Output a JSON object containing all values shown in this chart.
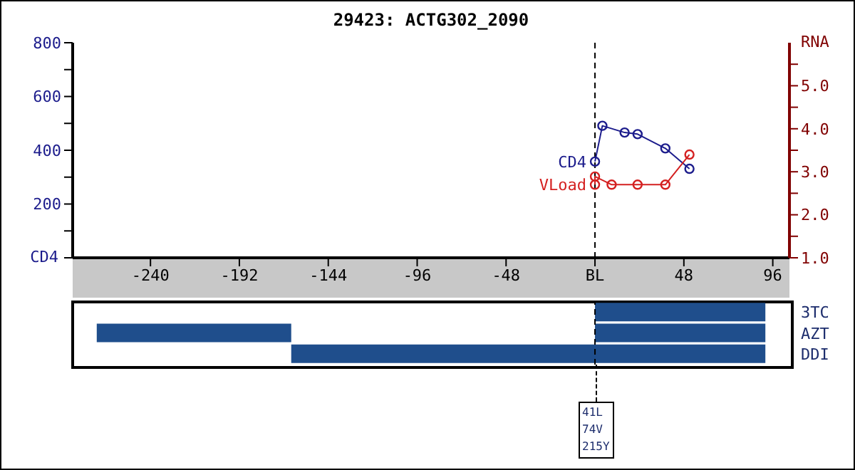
{
  "chart_data": [
    {
      "type": "line",
      "title": "29423: ACTG302_2090",
      "ylabel": "CD4",
      "y2label": "RNA",
      "marker": "circle",
      "series": [
        {
          "name": "CD4",
          "color": "#1c1c8c",
          "x": [
            0,
            4,
            16,
            23,
            38,
            51
          ],
          "values": [
            358,
            491,
            466,
            460,
            407,
            331
          ]
        },
        {
          "name": "VLoad",
          "color": "#d42020",
          "axis": "y2",
          "x": [
            0,
            0,
            9,
            23,
            38,
            51
          ],
          "values": [
            2.7,
            2.89,
            2.7,
            2.7,
            2.7,
            3.4
          ]
        }
      ],
      "xlim": [
        -282,
        105
      ],
      "xticks": [
        -240,
        -192,
        -144,
        -96,
        -48,
        {
          "value": 0,
          "label": "BL"
        },
        48,
        96
      ],
      "ylim": [
        0,
        800
      ],
      "yticks": [
        {
          "value": 0,
          "label": null
        },
        {
          "value": 100,
          "label": null
        },
        200,
        {
          "value": 300,
          "label": null
        },
        400,
        {
          "value": 500,
          "label": null
        },
        600,
        {
          "value": 700,
          "label": null
        },
        800
      ],
      "y2lim": [
        1,
        6
      ],
      "y2ticks": [
        {
          "value": 1,
          "label": "1.0"
        },
        {
          "value": 1.5,
          "label": null
        },
        {
          "value": 2,
          "label": "2.0"
        },
        {
          "value": 2.5,
          "label": null
        },
        {
          "value": 3,
          "label": "3.0"
        },
        {
          "value": 3.5,
          "label": null
        },
        {
          "value": 4,
          "label": "4.0"
        },
        {
          "value": 4.5,
          "label": null
        },
        {
          "value": 5,
          "label": "5.0"
        },
        {
          "value": 5.5,
          "label": null
        }
      ],
      "ref_lines": [
        {
          "axis": "x",
          "value": 0,
          "line_style": "dashed",
          "color": "#000000"
        }
      ]
    },
    {
      "type": "bar",
      "orientation": "horizontal",
      "categories": [
        "3TC",
        "AZT",
        "DDI"
      ],
      "tick_labels": "y",
      "series": [
        {
          "color": "#1f4e8c",
          "base": [
            0,
            -269,
            -164
          ],
          "values": [
            92,
            105,
            256
          ]
        },
        {
          "color": "#1f4e8c",
          "base": [
            null,
            0,
            null
          ],
          "values": [
            null,
            92,
            null
          ]
        }
      ],
      "xlim": [
        -282,
        105
      ],
      "ref_lines": [
        {
          "axis": "x",
          "value": 0,
          "line_style": "dashed",
          "color": "#000000"
        }
      ],
      "annotations": [
        "41L",
        "74V",
        "215Y"
      ]
    }
  ]
}
